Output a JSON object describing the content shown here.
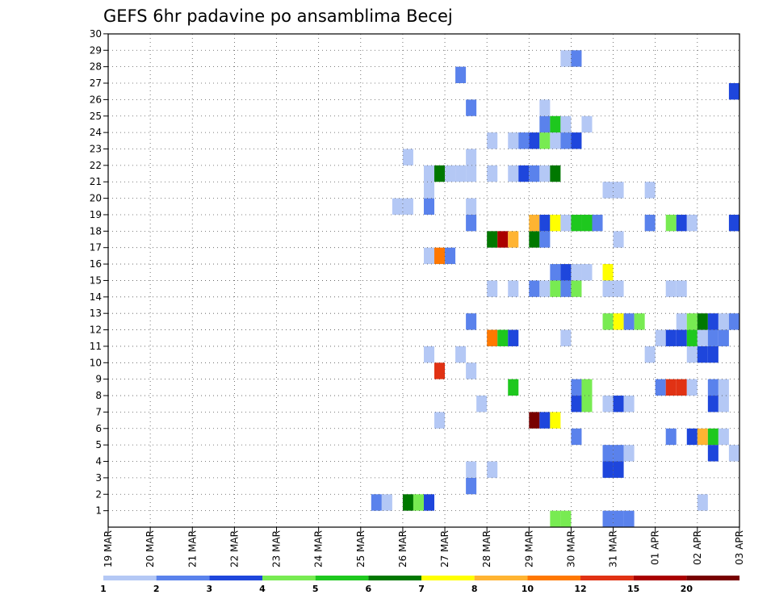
{
  "chart_data": {
    "type": "heatmap",
    "title": "GEFS 6hr padavine po ansamblima Becej",
    "xlabel": "",
    "ylabel": "",
    "x_ticks": [
      "19 MAR",
      "20 MAR",
      "21 MAR",
      "22 MAR",
      "23 MAR",
      "24 MAR",
      "25 MAR",
      "26 MAR",
      "27 MAR",
      "28 MAR",
      "29 MAR",
      "30 MAR",
      "31 MAR",
      "01 APR",
      "02 APR",
      "03 APR"
    ],
    "y_ticks": [
      "1",
      "2",
      "3",
      "4",
      "5",
      "6",
      "7",
      "8",
      "9",
      "10",
      "11",
      "12",
      "13",
      "14",
      "15",
      "16",
      "17",
      "18",
      "19",
      "20",
      "21",
      "22",
      "23",
      "24",
      "25",
      "26",
      "27",
      "28",
      "29",
      "30"
    ],
    "ylim": [
      0,
      30
    ],
    "time_step_hours": 6,
    "grid": true,
    "colorbar": {
      "ticks": [
        "1",
        "2",
        "3",
        "4",
        "5",
        "6",
        "7",
        "8",
        "10",
        "12",
        "15",
        "20"
      ],
      "colors": [
        "#b4c8f5",
        "#5a82ec",
        "#1e46dc",
        "#78eb52",
        "#1ec81e",
        "#007800",
        "#ffff00",
        "#ffb432",
        "#ff7800",
        "#e13214",
        "#aa0000",
        "#780000"
      ]
    },
    "cells_format": [
      "member",
      "6h step index from 19 MAR 00Z",
      "color class 0-11"
    ],
    "cells": [
      [
        1,
        25,
        1
      ],
      [
        1,
        26,
        0
      ],
      [
        1,
        28,
        5
      ],
      [
        1,
        29,
        3
      ],
      [
        1,
        30,
        2
      ],
      [
        1,
        56,
        0
      ],
      [
        0,
        42,
        3
      ],
      [
        0,
        43,
        3
      ],
      [
        0,
        47,
        1
      ],
      [
        0,
        48,
        1
      ],
      [
        0,
        49,
        1
      ],
      [
        2,
        34,
        1
      ],
      [
        3,
        34,
        0
      ],
      [
        3,
        36,
        0
      ],
      [
        4,
        47,
        1
      ],
      [
        4,
        48,
        1
      ],
      [
        4,
        49,
        0
      ],
      [
        3,
        47,
        2
      ],
      [
        3,
        48,
        2
      ],
      [
        4,
        57,
        2
      ],
      [
        4,
        59,
        0
      ],
      [
        5,
        44,
        1
      ],
      [
        5,
        53,
        1
      ],
      [
        5,
        55,
        2
      ],
      [
        5,
        56,
        7
      ],
      [
        5,
        57,
        4
      ],
      [
        5,
        58,
        0
      ],
      [
        6,
        31,
        0
      ],
      [
        6,
        40,
        11
      ],
      [
        6,
        41,
        2
      ],
      [
        6,
        42,
        6
      ],
      [
        7,
        35,
        0
      ],
      [
        7,
        44,
        2
      ],
      [
        7,
        45,
        3
      ],
      [
        7,
        47,
        0
      ],
      [
        7,
        48,
        2
      ],
      [
        7,
        49,
        0
      ],
      [
        7,
        57,
        2
      ],
      [
        7,
        58,
        0
      ],
      [
        8,
        38,
        4
      ],
      [
        8,
        44,
        1
      ],
      [
        8,
        45,
        3
      ],
      [
        8,
        52,
        1
      ],
      [
        8,
        53,
        9
      ],
      [
        8,
        54,
        9
      ],
      [
        8,
        55,
        0
      ],
      [
        8,
        57,
        1
      ],
      [
        8,
        58,
        0
      ],
      [
        9,
        31,
        9
      ],
      [
        9,
        34,
        0
      ],
      [
        10,
        30,
        0
      ],
      [
        10,
        33,
        0
      ],
      [
        10,
        51,
        0
      ],
      [
        10,
        55,
        0
      ],
      [
        10,
        56,
        2
      ],
      [
        10,
        57,
        2
      ],
      [
        11,
        36,
        8
      ],
      [
        11,
        37,
        4
      ],
      [
        11,
        38,
        2
      ],
      [
        11,
        43,
        0
      ],
      [
        11,
        52,
        0
      ],
      [
        11,
        53,
        2
      ],
      [
        11,
        54,
        2
      ],
      [
        11,
        55,
        4
      ],
      [
        11,
        56,
        0
      ],
      [
        11,
        57,
        1
      ],
      [
        11,
        58,
        1
      ],
      [
        12,
        34,
        1
      ],
      [
        12,
        47,
        3
      ],
      [
        12,
        48,
        6
      ],
      [
        12,
        49,
        1
      ],
      [
        12,
        50,
        3
      ],
      [
        12,
        54,
        0
      ],
      [
        12,
        55,
        3
      ],
      [
        12,
        56,
        5
      ],
      [
        12,
        57,
        2
      ],
      [
        12,
        58,
        0
      ],
      [
        12,
        59,
        1
      ],
      [
        14,
        36,
        0
      ],
      [
        14,
        38,
        0
      ],
      [
        14,
        40,
        1
      ],
      [
        14,
        41,
        0
      ],
      [
        14,
        42,
        3
      ],
      [
        14,
        43,
        1
      ],
      [
        14,
        44,
        3
      ],
      [
        14,
        47,
        0
      ],
      [
        14,
        48,
        0
      ],
      [
        14,
        53,
        0
      ],
      [
        14,
        54,
        0
      ],
      [
        15,
        42,
        1
      ],
      [
        15,
        43,
        2
      ],
      [
        15,
        44,
        0
      ],
      [
        15,
        45,
        0
      ],
      [
        15,
        47,
        6
      ],
      [
        16,
        30,
        0
      ],
      [
        16,
        31,
        8
      ],
      [
        16,
        32,
        1
      ],
      [
        17,
        36,
        5
      ],
      [
        17,
        37,
        10
      ],
      [
        17,
        38,
        7
      ],
      [
        17,
        40,
        5
      ],
      [
        17,
        41,
        1
      ],
      [
        17,
        48,
        0
      ],
      [
        18,
        34,
        1
      ],
      [
        18,
        40,
        7
      ],
      [
        18,
        41,
        2
      ],
      [
        18,
        42,
        6
      ],
      [
        18,
        43,
        0
      ],
      [
        18,
        44,
        4
      ],
      [
        18,
        45,
        4
      ],
      [
        18,
        46,
        1
      ],
      [
        18,
        51,
        1
      ],
      [
        18,
        53,
        3
      ],
      [
        18,
        54,
        2
      ],
      [
        18,
        55,
        0
      ],
      [
        18,
        59,
        2
      ],
      [
        19,
        27,
        0
      ],
      [
        19,
        28,
        0
      ],
      [
        19,
        30,
        1
      ],
      [
        19,
        34,
        0
      ],
      [
        20,
        30,
        0
      ],
      [
        20,
        47,
        0
      ],
      [
        20,
        48,
        0
      ],
      [
        20,
        51,
        0
      ],
      [
        21,
        30,
        0
      ],
      [
        21,
        31,
        5
      ],
      [
        21,
        32,
        0
      ],
      [
        21,
        33,
        0
      ],
      [
        21,
        34,
        0
      ],
      [
        21,
        36,
        0
      ],
      [
        21,
        38,
        0
      ],
      [
        21,
        39,
        2
      ],
      [
        21,
        40,
        1
      ],
      [
        21,
        41,
        0
      ],
      [
        21,
        42,
        5
      ],
      [
        22,
        28,
        0
      ],
      [
        22,
        34,
        0
      ],
      [
        23,
        36,
        0
      ],
      [
        23,
        38,
        0
      ],
      [
        23,
        39,
        1
      ],
      [
        23,
        40,
        2
      ],
      [
        23,
        41,
        3
      ],
      [
        23,
        42,
        0
      ],
      [
        23,
        43,
        1
      ],
      [
        23,
        44,
        2
      ],
      [
        24,
        41,
        1
      ],
      [
        24,
        42,
        4
      ],
      [
        24,
        43,
        0
      ],
      [
        24,
        45,
        0
      ],
      [
        25,
        34,
        1
      ],
      [
        25,
        41,
        0
      ],
      [
        26,
        59,
        2
      ],
      [
        27,
        33,
        1
      ],
      [
        28,
        43,
        0
      ],
      [
        28,
        44,
        1
      ]
    ]
  }
}
